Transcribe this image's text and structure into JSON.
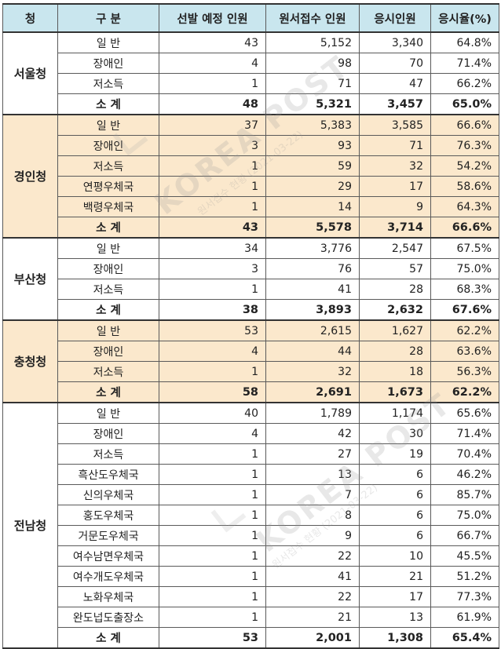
{
  "header": {
    "col1": "청",
    "col2": "구 분",
    "col3": "선발 예정 인원",
    "col4": "원서접수 인원",
    "col5": "응시인원",
    "col6": "응시율(%)"
  },
  "watermark": {
    "text1": "KOREA POST",
    "sub1": "원서접수 현황 (2021-03-22)",
    "text2": "KOREA POST",
    "sub2": "원서접수 현황 (2021-03-22)"
  },
  "groups": [
    {
      "region": "서울청",
      "rows": [
        {
          "name": "일   반",
          "planned": "43",
          "applied": "5,152",
          "exam": "3,340",
          "rate": "64.8%"
        },
        {
          "name": "장애인",
          "planned": "4",
          "applied": "98",
          "exam": "70",
          "rate": "71.4%"
        },
        {
          "name": "저소득",
          "planned": "1",
          "applied": "71",
          "exam": "47",
          "rate": "66.2%"
        }
      ],
      "subtotal": {
        "name": "소  계",
        "planned": "48",
        "applied": "5,321",
        "exam": "3,457",
        "rate": "65.0%"
      }
    },
    {
      "region": "경인청",
      "rows": [
        {
          "name": "일   반",
          "planned": "37",
          "applied": "5,383",
          "exam": "3,585",
          "rate": "66.6%"
        },
        {
          "name": "장애인",
          "planned": "3",
          "applied": "93",
          "exam": "71",
          "rate": "76.3%"
        },
        {
          "name": "저소득",
          "planned": "1",
          "applied": "59",
          "exam": "32",
          "rate": "54.2%"
        },
        {
          "name": "연평우체국",
          "planned": "1",
          "applied": "29",
          "exam": "17",
          "rate": "58.6%"
        },
        {
          "name": "백령우체국",
          "planned": "1",
          "applied": "14",
          "exam": "9",
          "rate": "64.3%"
        }
      ],
      "subtotal": {
        "name": "소  계",
        "planned": "43",
        "applied": "5,578",
        "exam": "3,714",
        "rate": "66.6%"
      }
    },
    {
      "region": "부산청",
      "rows": [
        {
          "name": "일   반",
          "planned": "34",
          "applied": "3,776",
          "exam": "2,547",
          "rate": "67.5%"
        },
        {
          "name": "장애인",
          "planned": "3",
          "applied": "76",
          "exam": "57",
          "rate": "75.0%"
        },
        {
          "name": "저소득",
          "planned": "1",
          "applied": "41",
          "exam": "28",
          "rate": "68.3%"
        }
      ],
      "subtotal": {
        "name": "소  계",
        "planned": "38",
        "applied": "3,893",
        "exam": "2,632",
        "rate": "67.6%"
      }
    },
    {
      "region": "충청청",
      "rows": [
        {
          "name": "일   반",
          "planned": "53",
          "applied": "2,615",
          "exam": "1,627",
          "rate": "62.2%"
        },
        {
          "name": "장애인",
          "planned": "4",
          "applied": "44",
          "exam": "28",
          "rate": "63.6%"
        },
        {
          "name": "저소득",
          "planned": "1",
          "applied": "32",
          "exam": "18",
          "rate": "56.3%"
        }
      ],
      "subtotal": {
        "name": "소  계",
        "planned": "58",
        "applied": "2,691",
        "exam": "1,673",
        "rate": "62.2%"
      }
    },
    {
      "region": "전남청",
      "rows": [
        {
          "name": "일   반",
          "planned": "40",
          "applied": "1,789",
          "exam": "1,174",
          "rate": "65.6%"
        },
        {
          "name": "장애인",
          "planned": "4",
          "applied": "42",
          "exam": "30",
          "rate": "71.4%"
        },
        {
          "name": "저소득",
          "planned": "1",
          "applied": "27",
          "exam": "19",
          "rate": "70.4%"
        },
        {
          "name": "흑산도우체국",
          "planned": "1",
          "applied": "13",
          "exam": "6",
          "rate": "46.2%"
        },
        {
          "name": "신의우체국",
          "planned": "1",
          "applied": "7",
          "exam": "6",
          "rate": "85.7%"
        },
        {
          "name": "홍도우체국",
          "planned": "1",
          "applied": "8",
          "exam": "6",
          "rate": "75.0%"
        },
        {
          "name": "거문도우체국",
          "planned": "1",
          "applied": "9",
          "exam": "6",
          "rate": "66.7%"
        },
        {
          "name": "여수남면우체국",
          "planned": "1",
          "applied": "22",
          "exam": "10",
          "rate": "45.5%"
        },
        {
          "name": "여수개도우체국",
          "planned": "1",
          "applied": "41",
          "exam": "21",
          "rate": "51.2%"
        },
        {
          "name": "노화우체국",
          "planned": "1",
          "applied": "22",
          "exam": "17",
          "rate": "77.3%"
        },
        {
          "name": "완도넙도출장소",
          "planned": "1",
          "applied": "21",
          "exam": "13",
          "rate": "61.9%"
        }
      ],
      "subtotal": {
        "name": "소  계",
        "planned": "53",
        "applied": "2,001",
        "exam": "1,308",
        "rate": "65.4%"
      }
    }
  ],
  "colors": {
    "header_bg": "#c9e6ee",
    "alt_group_bg": "#fbe8cc",
    "border": "#5a5a5a"
  }
}
